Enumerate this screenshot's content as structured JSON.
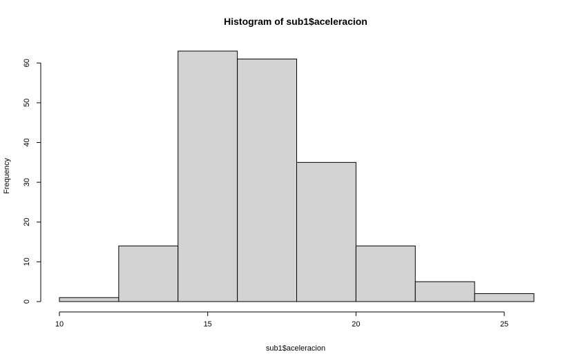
{
  "chart_data": {
    "type": "bar",
    "title": "Histogram of sub1$aceleracion",
    "xlabel": "sub1$aceleracion",
    "ylabel": "Frequency",
    "bins": [
      {
        "start": 10,
        "end": 12,
        "count": 1
      },
      {
        "start": 12,
        "end": 14,
        "count": 14
      },
      {
        "start": 14,
        "end": 16,
        "count": 63
      },
      {
        "start": 16,
        "end": 18,
        "count": 61
      },
      {
        "start": 18,
        "end": 20,
        "count": 35
      },
      {
        "start": 20,
        "end": 22,
        "count": 14
      },
      {
        "start": 22,
        "end": 24,
        "count": 5
      },
      {
        "start": 24,
        "end": 26,
        "count": 2
      }
    ],
    "x_ticks": [
      10,
      15,
      20,
      25
    ],
    "y_ticks": [
      0,
      10,
      20,
      30,
      40,
      50,
      60
    ],
    "xlim": [
      10,
      26
    ],
    "ylim": [
      0,
      63
    ],
    "bar_fill": "#d3d3d3",
    "bar_stroke": "#000000",
    "grid": false,
    "legend": "none"
  }
}
